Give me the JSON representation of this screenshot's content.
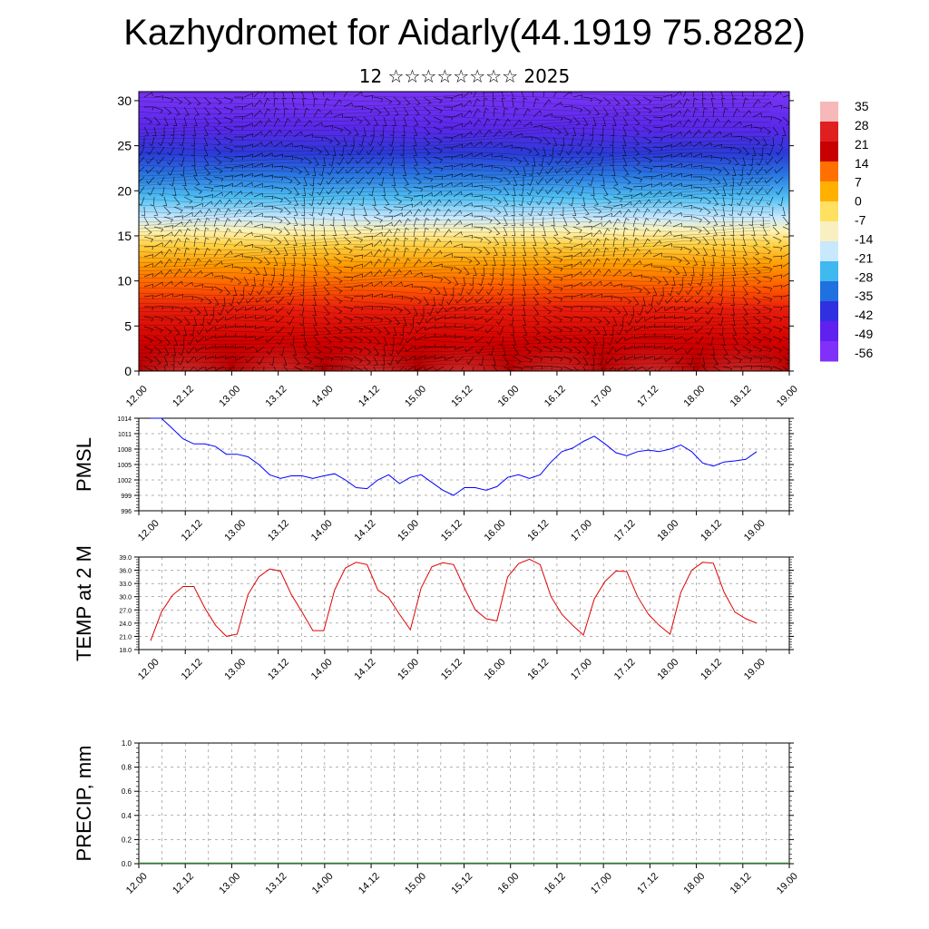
{
  "header": {
    "title": "Kazhydromet for Aidarly(44.1919 75.8282)",
    "subtitle": "12 ☆☆☆☆☆☆☆☆ 2025"
  },
  "chart_data": [
    {
      "type": "heatmap",
      "title": "",
      "ylabel": "",
      "ylim": [
        0,
        31
      ],
      "yticks": [
        "0",
        "5",
        "10",
        "15",
        "20",
        "25",
        "30"
      ],
      "xticks": [
        "12.00",
        "12.12",
        "13.00",
        "13.12",
        "14.00",
        "14.12",
        "15.00",
        "15.12",
        "16.00",
        "16.12",
        "17.00",
        "17.12",
        "18.00",
        "18.12",
        "19.00"
      ],
      "colorbar": {
        "labels": [
          "35",
          "28",
          "21",
          "14",
          "7",
          "0",
          "-7",
          "-14",
          "-21",
          "-28",
          "-35",
          "-42",
          "-49",
          "-56"
        ],
        "colors": [
          "#f6b8b8",
          "#e02020",
          "#c80000",
          "#ff7000",
          "#ffb000",
          "#ffe060",
          "#f8f0c0",
          "#c8e8ff",
          "#40b8f0",
          "#2070e0",
          "#3030e0",
          "#6020f0",
          "#8030f8"
        ]
      },
      "overlay": "wind-barbs",
      "warm_pulses_days": [
        12.5,
        13.5,
        14.5,
        15.5,
        16.5,
        17.5,
        18.5
      ]
    },
    {
      "type": "line",
      "ylabel": "PMSL",
      "ylim": [
        996,
        1014
      ],
      "yticks": [
        "996",
        "999",
        "1002",
        "1005",
        "1008",
        "1011",
        "1014"
      ],
      "xticks": [
        "12.00",
        "12.12",
        "13.00",
        "13.12",
        "14.00",
        "14.12",
        "15.00",
        "15.12",
        "16.00",
        "16.12",
        "17.00",
        "17.12",
        "18.00",
        "18.12",
        "19.00"
      ],
      "color": "#0000ff",
      "x": [
        0,
        3,
        6,
        9,
        12,
        15,
        18,
        21,
        24,
        27,
        30,
        33,
        36,
        39,
        42,
        45,
        48,
        51,
        54,
        57,
        60,
        63,
        66,
        69,
        72,
        75,
        78,
        81,
        84,
        87,
        90,
        93,
        96,
        99,
        102,
        105,
        108,
        111,
        114,
        117,
        120,
        123,
        126,
        129,
        132,
        135,
        138,
        141,
        144,
        147,
        150,
        153,
        156,
        159,
        162,
        165,
        168
      ],
      "values": [
        1014,
        1014,
        1012,
        1010,
        1009,
        1009,
        1008.5,
        1007,
        1007,
        1006.5,
        1005,
        1003,
        1002.3,
        1002.8,
        1002.8,
        1002.3,
        1002.8,
        1003.2,
        1002,
        1000.5,
        1000.3,
        1002,
        1003,
        1001.3,
        1002.5,
        1003,
        1001.5,
        1000,
        999,
        1000.5,
        1000.5,
        1000,
        1000.7,
        1002.5,
        1003,
        1002.3,
        1003,
        1005.5,
        1007.5,
        1008.2,
        1009.5,
        1010.5,
        1009,
        1007.3,
        1006.7,
        1007.5,
        1007.8,
        1007.5,
        1008,
        1008.8,
        1007.5,
        1005.3,
        1004.7,
        1005.5,
        1005.7,
        1006,
        1007.5
      ]
    },
    {
      "type": "line",
      "ylabel": "TEMP at 2 M",
      "ylim": [
        18,
        39
      ],
      "yticks": [
        "18.0",
        "21.0",
        "24.0",
        "27.0",
        "30.0",
        "33.0",
        "36.0",
        "39.0"
      ],
      "xticks": [
        "12.00",
        "12.12",
        "13.00",
        "13.12",
        "14.00",
        "14.12",
        "15.00",
        "15.12",
        "16.00",
        "16.12",
        "17.00",
        "17.12",
        "18.00",
        "18.12",
        "19.00"
      ],
      "color": "#e00000",
      "x": [
        0,
        3,
        6,
        9,
        12,
        15,
        18,
        21,
        24,
        27,
        30,
        33,
        36,
        39,
        42,
        45,
        48,
        51,
        54,
        57,
        60,
        63,
        66,
        69,
        72,
        75,
        78,
        81,
        84,
        87,
        90,
        93,
        96,
        99,
        102,
        105,
        108,
        111,
        114,
        117,
        120,
        123,
        126,
        129,
        132,
        135,
        138,
        141,
        144,
        147,
        150,
        153,
        156,
        159,
        162,
        165,
        168
      ],
      "values": [
        20,
        26.5,
        30.3,
        32.3,
        32.3,
        27.5,
        23.5,
        21,
        21.5,
        30.5,
        34.5,
        36.3,
        35.8,
        30.5,
        26.5,
        22.3,
        22.3,
        31.5,
        36.5,
        37.8,
        37.3,
        31.5,
        29.8,
        26,
        22.5,
        32,
        36.8,
        37.7,
        37.3,
        32,
        27,
        25,
        24.5,
        34.5,
        37.5,
        38.5,
        37.3,
        30,
        26,
        23.5,
        21.3,
        29.5,
        33.5,
        35.8,
        35.7,
        30,
        26,
        23.5,
        21.5,
        31,
        36,
        37.8,
        37.6,
        31,
        26.5,
        25,
        24
      ]
    },
    {
      "type": "bar",
      "ylabel": "PRECIP, mm",
      "ylim": [
        0,
        1.0
      ],
      "yticks": [
        "0.0",
        "0.2",
        "0.4",
        "0.6",
        "0.8",
        "1.0"
      ],
      "xticks": [
        "12.00",
        "12.12",
        "13.00",
        "13.12",
        "14.00",
        "14.12",
        "15.00",
        "15.12",
        "16.00",
        "16.12",
        "17.00",
        "17.12",
        "18.00",
        "18.12",
        "19.00"
      ],
      "values": [
        0,
        0,
        0,
        0,
        0,
        0,
        0,
        0,
        0,
        0,
        0,
        0,
        0,
        0,
        0,
        0,
        0,
        0,
        0,
        0,
        0,
        0,
        0,
        0,
        0,
        0,
        0,
        0,
        0,
        0,
        0,
        0,
        0,
        0,
        0,
        0,
        0,
        0,
        0,
        0,
        0,
        0,
        0,
        0,
        0,
        0,
        0,
        0,
        0,
        0,
        0,
        0,
        0,
        0,
        0,
        0,
        0
      ]
    }
  ]
}
